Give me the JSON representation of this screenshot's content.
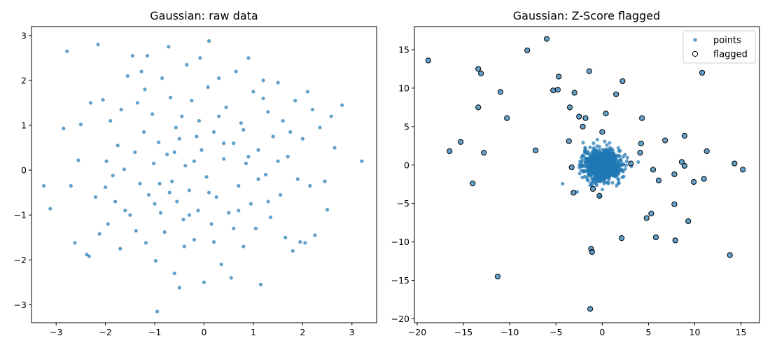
{
  "chart_data": [
    {
      "type": "scatter",
      "title": "Gaussian: raw data",
      "xlabel": "",
      "ylabel": "",
      "xlim": [
        -3.5,
        3.5
      ],
      "ylim": [
        -3.4,
        3.2
      ],
      "xticks": [
        -3,
        -2,
        -1,
        0,
        1,
        2,
        3
      ],
      "yticks": [
        -3,
        -2,
        -1,
        0,
        1,
        2,
        3
      ],
      "grid": false,
      "color": "#1f77b4",
      "series": [
        {
          "points": [
            [
              -3.25,
              -0.35
            ],
            [
              -3.12,
              -0.86
            ],
            [
              -2.85,
              0.93
            ],
            [
              -2.78,
              2.65
            ],
            [
              -2.62,
              -1.62
            ],
            [
              -2.55,
              0.22
            ],
            [
              -2.5,
              1.02
            ],
            [
              -2.38,
              -1.88
            ],
            [
              -2.33,
              -1.92
            ],
            [
              -2.2,
              -0.6
            ],
            [
              -2.15,
              2.8
            ],
            [
              -2.12,
              -1.42
            ],
            [
              -2.05,
              1.57
            ],
            [
              -2.0,
              -0.38
            ],
            [
              -1.98,
              0.2
            ],
            [
              -1.95,
              -1.2
            ],
            [
              -1.9,
              1.1
            ],
            [
              -1.85,
              -0.12
            ],
            [
              -1.8,
              -0.7
            ],
            [
              -1.75,
              0.55
            ],
            [
              -1.7,
              -1.75
            ],
            [
              -1.68,
              1.35
            ],
            [
              -1.62,
              0.02
            ],
            [
              -1.55,
              2.1
            ],
            [
              -1.5,
              -1.0
            ],
            [
              -1.45,
              2.55
            ],
            [
              -1.4,
              0.4
            ],
            [
              -1.38,
              -1.35
            ],
            [
              -1.35,
              1.5
            ],
            [
              -1.3,
              -0.3
            ],
            [
              -1.27,
              2.2
            ],
            [
              -1.22,
              0.85
            ],
            [
              -1.18,
              -1.62
            ],
            [
              -1.15,
              2.55
            ],
            [
              -1.12,
              -0.55
            ],
            [
              -1.05,
              1.25
            ],
            [
              -1.02,
              0.15
            ],
            [
              -0.98,
              -2.02
            ],
            [
              -0.95,
              -3.15
            ],
            [
              -0.92,
              0.62
            ],
            [
              -0.88,
              -0.95
            ],
            [
              -0.85,
              2.05
            ],
            [
              -0.8,
              -1.38
            ],
            [
              -0.75,
              0.35
            ],
            [
              -0.72,
              2.75
            ],
            [
              -0.68,
              1.62
            ],
            [
              -0.65,
              -0.25
            ],
            [
              -0.6,
              -2.3
            ],
            [
              -0.57,
              0.95
            ],
            [
              -0.55,
              -0.7
            ],
            [
              -0.5,
              -2.62
            ],
            [
              -0.45,
              1.2
            ],
            [
              -0.42,
              -1.1
            ],
            [
              -0.38,
              0.1
            ],
            [
              -0.35,
              2.35
            ],
            [
              -0.3,
              -0.45
            ],
            [
              -0.25,
              1.55
            ],
            [
              -0.2,
              -1.55
            ],
            [
              -0.15,
              0.75
            ],
            [
              -0.12,
              -0.9
            ],
            [
              -0.08,
              2.5
            ],
            [
              -0.05,
              0.45
            ],
            [
              0.0,
              -2.5
            ],
            [
              0.05,
              -0.15
            ],
            [
              0.08,
              1.85
            ],
            [
              0.1,
              2.88
            ],
            [
              0.15,
              -1.2
            ],
            [
              0.2,
              0.85
            ],
            [
              0.25,
              -0.6
            ],
            [
              0.3,
              2.05
            ],
            [
              0.35,
              -2.1
            ],
            [
              0.4,
              0.25
            ],
            [
              0.45,
              1.4
            ],
            [
              0.5,
              -0.95
            ],
            [
              0.55,
              -2.4
            ],
            [
              0.6,
              0.6
            ],
            [
              0.65,
              2.2
            ],
            [
              0.7,
              -0.35
            ],
            [
              0.75,
              1.05
            ],
            [
              0.8,
              -1.7
            ],
            [
              0.85,
              0.15
            ],
            [
              0.9,
              2.5
            ],
            [
              0.95,
              -0.75
            ],
            [
              1.0,
              1.75
            ],
            [
              1.05,
              -1.3
            ],
            [
              1.1,
              0.45
            ],
            [
              1.15,
              -2.55
            ],
            [
              1.2,
              2.0
            ],
            [
              1.25,
              -0.1
            ],
            [
              1.3,
              1.3
            ],
            [
              1.35,
              -1.05
            ],
            [
              1.4,
              0.75
            ],
            [
              1.5,
              1.95
            ],
            [
              1.55,
              -0.55
            ],
            [
              1.6,
              1.1
            ],
            [
              1.65,
              -1.5
            ],
            [
              1.7,
              0.3
            ],
            [
              1.8,
              -1.8
            ],
            [
              1.85,
              1.55
            ],
            [
              1.9,
              -0.2
            ],
            [
              1.95,
              -1.6
            ],
            [
              2.0,
              0.7
            ],
            [
              2.05,
              -1.62
            ],
            [
              2.1,
              1.75
            ],
            [
              2.15,
              -0.35
            ],
            [
              2.2,
              1.35
            ],
            [
              2.25,
              -1.45
            ],
            [
              2.35,
              0.95
            ],
            [
              2.45,
              -0.25
            ],
            [
              2.5,
              -0.88
            ],
            [
              2.58,
              1.2
            ],
            [
              2.65,
              0.5
            ],
            [
              2.8,
              1.45
            ],
            [
              3.2,
              0.2
            ],
            [
              -2.7,
              -0.35
            ],
            [
              -2.3,
              1.5
            ],
            [
              -1.6,
              -0.9
            ],
            [
              -1.2,
              1.8
            ],
            [
              -0.9,
              -0.3
            ],
            [
              -0.6,
              0.4
            ],
            [
              -0.4,
              -1.7
            ],
            [
              -0.2,
              0.2
            ],
            [
              0.1,
              -0.5
            ],
            [
              0.3,
              1.2
            ],
            [
              0.6,
              -1.3
            ],
            [
              0.8,
              0.9
            ],
            [
              1.1,
              -0.2
            ],
            [
              1.3,
              -0.7
            ],
            [
              1.5,
              0.2
            ],
            [
              1.75,
              0.85
            ],
            [
              -1.0,
              -0.75
            ],
            [
              -0.7,
              -0.5
            ],
            [
              -0.5,
              0.7
            ],
            [
              -0.3,
              -1.0
            ],
            [
              -0.1,
              1.1
            ],
            [
              0.2,
              -1.6
            ],
            [
              0.4,
              0.6
            ],
            [
              0.7,
              -0.9
            ],
            [
              0.9,
              0.3
            ],
            [
              1.2,
              1.6
            ]
          ]
        }
      ]
    },
    {
      "type": "scatter",
      "title": "Gaussian: Z-Score flagged",
      "xlabel": "",
      "ylabel": "",
      "xlim": [
        -20.3,
        17.0
      ],
      "ylim": [
        -20.5,
        18.0
      ],
      "xticks": [
        -20,
        -15,
        -10,
        -5,
        0,
        5,
        10,
        15
      ],
      "yticks": [
        -20,
        -15,
        -10,
        -5,
        0,
        5,
        10,
        15
      ],
      "grid": false,
      "legend_position": "top-right",
      "series": [
        {
          "name": "points",
          "color": "#1f77b4",
          "cluster": {
            "center": [
              0.0,
              0.0
            ],
            "spread": 1.0,
            "count": 900
          }
        },
        {
          "name": "flagged",
          "edge_color": "#000000",
          "points": [
            [
              -18.8,
              13.6
            ],
            [
              -16.5,
              1.8
            ],
            [
              -15.3,
              3.0
            ],
            [
              -14.0,
              -2.4
            ],
            [
              -13.4,
              12.5
            ],
            [
              -13.1,
              11.9
            ],
            [
              -13.4,
              7.5
            ],
            [
              -12.8,
              1.6
            ],
            [
              -11.3,
              -14.5
            ],
            [
              -11.0,
              9.5
            ],
            [
              -10.3,
              6.1
            ],
            [
              -8.1,
              14.9
            ],
            [
              -7.2,
              1.9
            ],
            [
              -6.0,
              16.4
            ],
            [
              -5.3,
              9.7
            ],
            [
              -4.8,
              9.8
            ],
            [
              -4.7,
              11.5
            ],
            [
              -3.6,
              3.1
            ],
            [
              -3.5,
              7.5
            ],
            [
              -3.3,
              -0.3
            ],
            [
              -3.0,
              9.4
            ],
            [
              -3.1,
              -3.6
            ],
            [
              -2.5,
              6.3
            ],
            [
              -2.1,
              5.0
            ],
            [
              -1.8,
              6.1
            ],
            [
              -1.4,
              12.2
            ],
            [
              -1.2,
              -10.9
            ],
            [
              -1.1,
              -11.3
            ],
            [
              -1.3,
              -18.7
            ],
            [
              -1.0,
              -3.1
            ],
            [
              -0.3,
              -4.0
            ],
            [
              0.0,
              4.3
            ],
            [
              0.4,
              6.7
            ],
            [
              1.5,
              9.2
            ],
            [
              2.2,
              10.9
            ],
            [
              2.1,
              -9.5
            ],
            [
              3.1,
              0.2
            ],
            [
              4.1,
              1.6
            ],
            [
              4.2,
              2.8
            ],
            [
              4.3,
              6.1
            ],
            [
              4.8,
              -6.9
            ],
            [
              5.3,
              -6.3
            ],
            [
              5.5,
              -0.6
            ],
            [
              5.8,
              -9.4
            ],
            [
              6.1,
              -2.0
            ],
            [
              6.8,
              3.2
            ],
            [
              7.8,
              -1.2
            ],
            [
              7.8,
              -5.1
            ],
            [
              7.9,
              -9.8
            ],
            [
              8.6,
              0.4
            ],
            [
              8.9,
              3.8
            ],
            [
              8.9,
              -0.1
            ],
            [
              9.3,
              -7.3
            ],
            [
              9.9,
              -2.2
            ],
            [
              10.8,
              12.0
            ],
            [
              11.0,
              -1.8
            ],
            [
              11.3,
              1.8
            ],
            [
              13.8,
              -11.7
            ],
            [
              14.3,
              0.2
            ],
            [
              15.2,
              -0.6
            ]
          ]
        }
      ]
    }
  ]
}
